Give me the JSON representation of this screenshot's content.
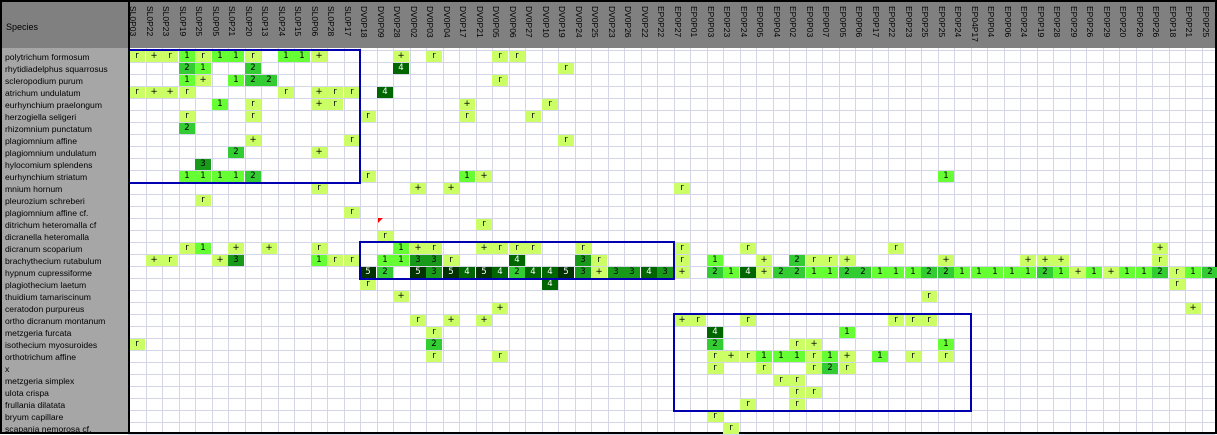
{
  "sheet": {
    "corner_label": "Species",
    "columns": [
      "SL0P03",
      "SL0P22",
      "SL0P23",
      "SL0P19",
      "SL0P25",
      "SL0P05",
      "SL0P21",
      "SL0P20",
      "SL0P13",
      "SL0P24",
      "SL0P15",
      "SL0P06",
      "SL0P28",
      "SL0P17",
      "DV0P18",
      "DV0P09",
      "DV0P28",
      "DV0P02",
      "DV0P03",
      "DV0P04",
      "DV0P17",
      "DV0P21",
      "DV0P05",
      "DV0P06",
      "DV0P27",
      "DV0P10",
      "DV0P19",
      "DV0P24",
      "DV0P25",
      "DV0P23",
      "DV0P26",
      "DV0P22",
      "EP0P22",
      "EP0P27",
      "EP0P01",
      "EP0P03",
      "EP0P23",
      "EP0P24",
      "EP0P05",
      "EP0P04",
      "EP0P02",
      "EP0P03",
      "EP0P07",
      "EP0P05",
      "EP0P06",
      "EP0P17",
      "EP0P22",
      "EP0P23",
      "EP0P25",
      "EP0P25",
      "EP0P24",
      "EP04P17",
      "EP0P04",
      "EP0P06",
      "EP0P24",
      "EP0P19",
      "EP0P28",
      "EP0P29",
      "EP0P26",
      "EP0P29",
      "EP0P20",
      "EP0P26",
      "EP0P26",
      "EP0P18",
      "EP0P21",
      "EP0P25"
    ],
    "species": [
      "polytrichum formosum",
      "rhytidiadelphus squarrosus",
      "scleropodium purum",
      "atrichum undulatum",
      "eurhynchium praelongum",
      "herzogiella seligeri",
      "rhizomnium punctatum",
      "plagiomnium affine",
      "plagiomnium undulatum",
      "hylocomium splendens",
      "eurhynchium striatum",
      "mnium hornum",
      "pleurozium schreberi",
      "plagiomnium affine cf.",
      "ditrichum heteromalla cf",
      "dicranella heteromalla",
      "dicranum scoparium",
      "brachythecium rutabulum",
      "hypnum cupressiforme",
      "plagiothecium laetum",
      "thuidium tamariscinum",
      "ceratodon purpureus",
      "ortho dicranum montanum",
      "metzgeria furcata",
      "isothecium myosuroides",
      "orthotrichum affine",
      "x",
      "metzgeria simplex",
      "ulota crispa",
      "frullania dilatata",
      "bryum capillare",
      "scapania nemorosa cf."
    ],
    "cells": [
      [
        0,
        0,
        "r"
      ],
      [
        0,
        1,
        "+"
      ],
      [
        0,
        2,
        "r"
      ],
      [
        0,
        3,
        "1"
      ],
      [
        0,
        4,
        "r"
      ],
      [
        0,
        5,
        "1"
      ],
      [
        0,
        6,
        "1"
      ],
      [
        0,
        7,
        "r"
      ],
      [
        0,
        9,
        "1"
      ],
      [
        0,
        10,
        "1"
      ],
      [
        0,
        11,
        "+"
      ],
      [
        0,
        16,
        "+"
      ],
      [
        0,
        18,
        "r"
      ],
      [
        0,
        22,
        "r"
      ],
      [
        0,
        23,
        "r"
      ],
      [
        1,
        3,
        "2"
      ],
      [
        1,
        4,
        "1"
      ],
      [
        1,
        7,
        "2"
      ],
      [
        1,
        16,
        "4"
      ],
      [
        1,
        26,
        "r"
      ],
      [
        2,
        3,
        "1"
      ],
      [
        2,
        4,
        "+"
      ],
      [
        2,
        6,
        "1"
      ],
      [
        2,
        7,
        "2"
      ],
      [
        2,
        8,
        "2"
      ],
      [
        2,
        22,
        "r"
      ],
      [
        3,
        0,
        "r"
      ],
      [
        3,
        1,
        "+"
      ],
      [
        3,
        2,
        "+"
      ],
      [
        3,
        3,
        "r"
      ],
      [
        3,
        9,
        "r"
      ],
      [
        3,
        11,
        "+"
      ],
      [
        3,
        12,
        "r"
      ],
      [
        3,
        13,
        "r"
      ],
      [
        3,
        15,
        "4"
      ],
      [
        4,
        5,
        "1"
      ],
      [
        4,
        7,
        "r"
      ],
      [
        4,
        11,
        "+"
      ],
      [
        4,
        12,
        "r"
      ],
      [
        4,
        20,
        "+"
      ],
      [
        4,
        25,
        "r"
      ],
      [
        5,
        3,
        "r"
      ],
      [
        5,
        7,
        "r"
      ],
      [
        5,
        14,
        "r"
      ],
      [
        5,
        20,
        "r"
      ],
      [
        5,
        24,
        "r"
      ],
      [
        6,
        3,
        "2"
      ],
      [
        7,
        7,
        "+"
      ],
      [
        7,
        13,
        "r"
      ],
      [
        7,
        26,
        "r"
      ],
      [
        8,
        6,
        "2"
      ],
      [
        8,
        11,
        "+"
      ],
      [
        9,
        4,
        "3"
      ],
      [
        10,
        3,
        "1"
      ],
      [
        10,
        4,
        "1"
      ],
      [
        10,
        5,
        "1"
      ],
      [
        10,
        6,
        "1"
      ],
      [
        10,
        7,
        "2"
      ],
      [
        10,
        14,
        "r"
      ],
      [
        10,
        20,
        "1"
      ],
      [
        10,
        21,
        "+"
      ],
      [
        10,
        49,
        "1"
      ],
      [
        11,
        11,
        "r"
      ],
      [
        11,
        17,
        "+"
      ],
      [
        11,
        19,
        "+"
      ],
      [
        11,
        33,
        "r"
      ],
      [
        12,
        4,
        "r"
      ],
      [
        13,
        13,
        "r"
      ],
      [
        14,
        21,
        "r"
      ],
      [
        15,
        15,
        "r"
      ],
      [
        16,
        3,
        "r"
      ],
      [
        16,
        4,
        "1"
      ],
      [
        16,
        6,
        "+"
      ],
      [
        16,
        8,
        "+"
      ],
      [
        16,
        11,
        "r"
      ],
      [
        16,
        16,
        "1"
      ],
      [
        16,
        17,
        "+"
      ],
      [
        16,
        18,
        "r"
      ],
      [
        16,
        21,
        "+"
      ],
      [
        16,
        22,
        "r"
      ],
      [
        16,
        23,
        "r"
      ],
      [
        16,
        24,
        "r"
      ],
      [
        16,
        27,
        "r"
      ],
      [
        16,
        33,
        "r"
      ],
      [
        16,
        37,
        "r"
      ],
      [
        16,
        46,
        "r"
      ],
      [
        16,
        62,
        "+"
      ],
      [
        17,
        1,
        "+"
      ],
      [
        17,
        2,
        "r"
      ],
      [
        17,
        5,
        "+"
      ],
      [
        17,
        6,
        "3"
      ],
      [
        17,
        11,
        "1"
      ],
      [
        17,
        12,
        "r"
      ],
      [
        17,
        13,
        "r"
      ],
      [
        17,
        15,
        "1"
      ],
      [
        17,
        16,
        "1"
      ],
      [
        17,
        17,
        "3"
      ],
      [
        17,
        18,
        "3"
      ],
      [
        17,
        19,
        "r"
      ],
      [
        17,
        23,
        "4"
      ],
      [
        17,
        27,
        "3"
      ],
      [
        17,
        28,
        "r"
      ],
      [
        17,
        33,
        "r"
      ],
      [
        17,
        35,
        "1"
      ],
      [
        17,
        38,
        "+"
      ],
      [
        17,
        40,
        "2"
      ],
      [
        17,
        41,
        "r"
      ],
      [
        17,
        42,
        "r"
      ],
      [
        17,
        43,
        "+"
      ],
      [
        17,
        49,
        "+"
      ],
      [
        17,
        54,
        "+"
      ],
      [
        17,
        55,
        "+"
      ],
      [
        17,
        56,
        "+"
      ],
      [
        17,
        62,
        "r"
      ],
      [
        18,
        14,
        "5"
      ],
      [
        18,
        15,
        "2"
      ],
      [
        18,
        17,
        "5"
      ],
      [
        18,
        18,
        "3"
      ],
      [
        18,
        19,
        "5"
      ],
      [
        18,
        20,
        "4"
      ],
      [
        18,
        21,
        "5"
      ],
      [
        18,
        22,
        "4"
      ],
      [
        18,
        23,
        "2"
      ],
      [
        18,
        24,
        "4"
      ],
      [
        18,
        25,
        "4"
      ],
      [
        18,
        26,
        "5"
      ],
      [
        18,
        27,
        "3"
      ],
      [
        18,
        28,
        "+"
      ],
      [
        18,
        29,
        "3"
      ],
      [
        18,
        30,
        "3"
      ],
      [
        18,
        31,
        "4"
      ],
      [
        18,
        32,
        "3"
      ],
      [
        18,
        33,
        "+"
      ],
      [
        18,
        35,
        "2"
      ],
      [
        18,
        36,
        "1"
      ],
      [
        18,
        37,
        "4"
      ],
      [
        18,
        38,
        "+"
      ],
      [
        18,
        39,
        "2"
      ],
      [
        18,
        40,
        "2"
      ],
      [
        18,
        41,
        "1"
      ],
      [
        18,
        42,
        "1"
      ],
      [
        18,
        43,
        "2"
      ],
      [
        18,
        44,
        "2"
      ],
      [
        18,
        45,
        "1"
      ],
      [
        18,
        46,
        "1"
      ],
      [
        18,
        47,
        "1"
      ],
      [
        18,
        48,
        "2"
      ],
      [
        18,
        49,
        "2"
      ],
      [
        18,
        50,
        "1"
      ],
      [
        18,
        51,
        "1"
      ],
      [
        18,
        52,
        "1"
      ],
      [
        18,
        53,
        "1"
      ],
      [
        18,
        54,
        "1"
      ],
      [
        18,
        55,
        "2"
      ],
      [
        18,
        56,
        "1"
      ],
      [
        18,
        57,
        "+"
      ],
      [
        18,
        58,
        "1"
      ],
      [
        18,
        59,
        "+"
      ],
      [
        18,
        60,
        "1"
      ],
      [
        18,
        61,
        "1"
      ],
      [
        18,
        62,
        "2"
      ],
      [
        18,
        63,
        "r"
      ],
      [
        18,
        64,
        "1"
      ],
      [
        18,
        65,
        "2"
      ],
      [
        19,
        14,
        "r"
      ],
      [
        19,
        25,
        "4"
      ],
      [
        19,
        63,
        "r"
      ],
      [
        20,
        16,
        "+"
      ],
      [
        20,
        48,
        "r"
      ],
      [
        21,
        22,
        "+"
      ],
      [
        21,
        64,
        "+"
      ],
      [
        22,
        17,
        "r"
      ],
      [
        22,
        19,
        "+"
      ],
      [
        22,
        21,
        "+"
      ],
      [
        22,
        33,
        "+"
      ],
      [
        22,
        34,
        "r"
      ],
      [
        22,
        37,
        "r"
      ],
      [
        22,
        46,
        "r"
      ],
      [
        22,
        47,
        "r"
      ],
      [
        22,
        48,
        "r"
      ],
      [
        23,
        18,
        "r"
      ],
      [
        23,
        35,
        "4"
      ],
      [
        23,
        43,
        "1"
      ],
      [
        24,
        0,
        "r"
      ],
      [
        24,
        18,
        "2"
      ],
      [
        24,
        35,
        "2"
      ],
      [
        24,
        40,
        "r"
      ],
      [
        24,
        41,
        "+"
      ],
      [
        24,
        49,
        "1"
      ],
      [
        25,
        18,
        "r"
      ],
      [
        25,
        22,
        "r"
      ],
      [
        25,
        35,
        "r"
      ],
      [
        25,
        36,
        "+"
      ],
      [
        25,
        37,
        "r"
      ],
      [
        25,
        38,
        "1"
      ],
      [
        25,
        39,
        "1"
      ],
      [
        25,
        40,
        "1"
      ],
      [
        25,
        41,
        "r"
      ],
      [
        25,
        42,
        "1"
      ],
      [
        25,
        43,
        "+"
      ],
      [
        25,
        45,
        "1"
      ],
      [
        25,
        47,
        "r"
      ],
      [
        25,
        49,
        "r"
      ],
      [
        26,
        35,
        "r"
      ],
      [
        26,
        38,
        "r"
      ],
      [
        26,
        41,
        "r"
      ],
      [
        26,
        42,
        "2"
      ],
      [
        26,
        43,
        "r"
      ],
      [
        27,
        39,
        "r"
      ],
      [
        27,
        40,
        "r"
      ],
      [
        28,
        40,
        "r"
      ],
      [
        28,
        41,
        "r"
      ],
      [
        29,
        37,
        "r"
      ],
      [
        29,
        40,
        "r"
      ],
      [
        30,
        35,
        "r"
      ],
      [
        31,
        36,
        "r"
      ]
    ],
    "colors": {
      "r": "#ccff66",
      "+": "#ccff66",
      "1": "#66ff33",
      "2": "#33cc33",
      "3": "#199919",
      "4": "#006600",
      "5": "#003300",
      "box": "#0000b0",
      "header": "#808080",
      "names": "#a6a6a6"
    },
    "boxes": [
      {
        "name": "box-sl-cluster",
        "c0": 0,
        "r0": 0,
        "c1": 13,
        "r1": 10
      },
      {
        "name": "box-dv-cluster",
        "c0": 14,
        "r0": 16,
        "c1": 32,
        "r1": 18
      },
      {
        "name": "box-ep-cluster",
        "c0": 33,
        "r0": 22,
        "c1": 50,
        "r1": 29
      }
    ]
  }
}
